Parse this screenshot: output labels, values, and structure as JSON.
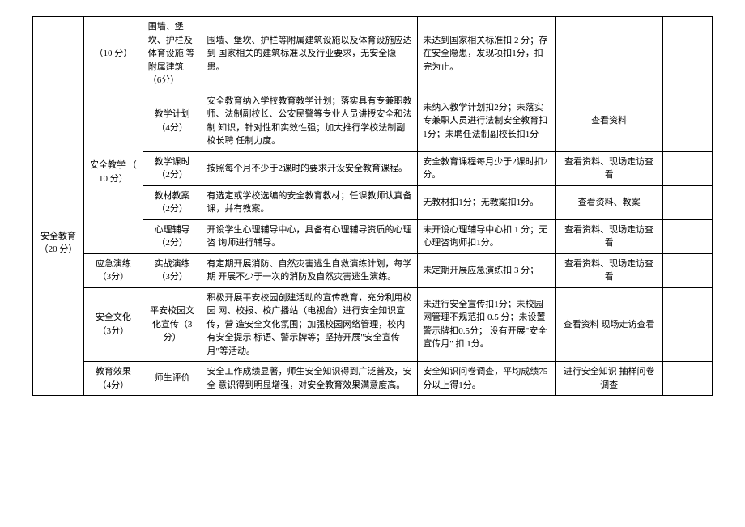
{
  "rows": [
    {
      "c2": "（10 分）",
      "c3": "围墙、堡坎、护栏及体育设施 等附属建筑 （6分）",
      "c4": "围墙、堡坎、护栏等附属建筑设施以及体育设施应达到 国家相关的建筑标准以及行业要求，无安全隐患。",
      "c5": "未达到国家相关标准扣 2 分；存在安全隐患，发现项扣1分，扣完为止。",
      "c6": "",
      "c7": "",
      "c8": ""
    },
    {
      "c1": "安全教育（20 分）",
      "c2": "安全教学 （ 10 分）",
      "c3": "教学计划（4分）",
      "c4": "安全教育纳入学校教育教学计划；落实具有专兼职教师、法制副校长、公安民警等专业人员讲授安全和法制 知识，针对性和实效性强；加大推行学校法制副校长聘 任制力度。",
      "c5": "未纳入教学计划扣2分；未落实专兼职人员进行法制安全教育扣1分；未聘任法制副校长扣1分",
      "c6": "查看资料",
      "c7": "",
      "c8": ""
    },
    {
      "c3": "教学课时（2分）",
      "c4": "按照每个月不少于2课时的要求开设安全教育课程。",
      "c5": "安全教育课程每月少于2课时扣2分。",
      "c6": "查看资料、现场走访查看",
      "c7": "",
      "c8": ""
    },
    {
      "c3": "教材教案（2分）",
      "c4": "有选定或学校选编的安全教育教材；任课教师认真备课，并有教案。",
      "c5": "无教材扣1分；无教案扣1分。",
      "c6": "查看资料、教案",
      "c7": "",
      "c8": ""
    },
    {
      "c3": "心理辅导（2分）",
      "c4": "开设学生心理辅导中心，具备有心理辅导资质的心理咨 询师进行辅导。",
      "c5": "未开设心理辅导中心扣 1 分；无心理咨询师扣1分。",
      "c6": "查看资料、现场走访查看",
      "c7": "",
      "c8": ""
    },
    {
      "c2": "应急演练（3分）",
      "c3": "实战演练（3分）",
      "c4": "有定期开展消防、自然灾害逃生自救演练计划，每学期 开展不少于一次的消防及自然灾害逃生演练。",
      "c5": "未定期开展应急演练扣 3 分；",
      "c6": "查看资料、现场走访查看",
      "c7": "",
      "c8": ""
    },
    {
      "c2": "安全文化（3分）",
      "c3": "平安校园文化宣传（3分）",
      "c4": "积极开展平安校园创建活动的宣传教育，充分利用校园 网、校报、校广播站（电视台）进行安全知识宣传，营 造安全文化氛围；加强校园网络管理，校内有安全提示 标语、警示牌等；坚持开展\"安全宣传月\"等活动。",
      "c5": "未进行安全宣传扣1分；未校园网管理不规范扣 0.5 分；未设置警示牌扣0.5分； 没有开展\"安全宣传月\" 扣 1分。",
      "c6": "查看资料 现场走访查看",
      "c7": "",
      "c8": ""
    },
    {
      "c2": "教育效果（4分）",
      "c3": "师生评价",
      "c4": "安全工作成绩显著，师生安全知识得到广泛普及，安全 意识得到明显增强，对安全教育效果满意度高。",
      "c5": "安全知识问卷调查，平均成绩75分以上得1分。",
      "c6": "进行安全知识 抽样问卷调查",
      "c7": "",
      "c8": ""
    }
  ]
}
